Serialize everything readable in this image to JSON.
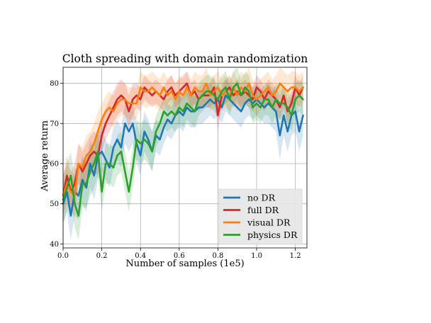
{
  "chart_data": {
    "type": "line",
    "title": "Cloth spreading with domain randomization",
    "xlabel": "Number of samples (1e5)",
    "ylabel": "Average return",
    "xlim": [
      0.0,
      1.26
    ],
    "ylim": [
      39,
      84
    ],
    "xticks": [
      0.0,
      0.2,
      0.4,
      0.6,
      0.8,
      1.0,
      1.2
    ],
    "xtick_labels": [
      "0.0",
      "0.2",
      "0.4",
      "0.6",
      "0.8",
      "1.0",
      "1.2"
    ],
    "yticks": [
      40,
      50,
      60,
      70,
      80
    ],
    "ytick_labels": [
      "40",
      "50",
      "60",
      "70",
      "80"
    ],
    "grid": true,
    "legend_position": "bottom-right",
    "x": [
      0.0,
      0.02,
      0.04,
      0.06,
      0.08,
      0.1,
      0.12,
      0.14,
      0.16,
      0.18,
      0.2,
      0.22,
      0.24,
      0.26,
      0.28,
      0.3,
      0.32,
      0.34,
      0.36,
      0.38,
      0.4,
      0.42,
      0.44,
      0.46,
      0.48,
      0.5,
      0.52,
      0.54,
      0.56,
      0.58,
      0.6,
      0.62,
      0.64,
      0.66,
      0.68,
      0.7,
      0.72,
      0.74,
      0.76,
      0.78,
      0.8,
      0.82,
      0.84,
      0.86,
      0.88,
      0.9,
      0.92,
      0.94,
      0.96,
      0.98,
      1.0,
      1.02,
      1.04,
      1.06,
      1.08,
      1.1,
      1.12,
      1.14,
      1.16,
      1.18,
      1.2,
      1.22,
      1.24
    ],
    "series": [
      {
        "name": "no DR",
        "color": "#1f77b4",
        "values": [
          50,
          53,
          47,
          53,
          52,
          56,
          54,
          60,
          57,
          62,
          63,
          61,
          59,
          64,
          66,
          64,
          70,
          68,
          70,
          65,
          62,
          68,
          66,
          63,
          67,
          66,
          69,
          71,
          70,
          72,
          73,
          72,
          74,
          73,
          73,
          74,
          74,
          75,
          76,
          75,
          76,
          74,
          77,
          76,
          75,
          74,
          73,
          75,
          76,
          75,
          76,
          75,
          74,
          75,
          74,
          73,
          67,
          72,
          68,
          72,
          73,
          68,
          72
        ],
        "band": [
          5,
          5,
          6,
          6,
          6,
          6,
          6,
          6,
          6,
          6,
          5,
          5,
          5,
          5,
          5,
          5,
          5,
          5,
          5,
          5,
          5,
          5,
          5,
          5,
          4,
          4,
          4,
          4,
          4,
          4,
          4,
          4,
          4,
          4,
          4,
          4,
          4,
          4,
          4,
          4,
          4,
          4,
          4,
          4,
          4,
          4,
          4,
          4,
          4,
          4,
          4,
          4,
          4,
          5,
          5,
          5,
          6,
          5,
          5,
          5,
          5,
          5,
          5
        ]
      },
      {
        "name": "full DR",
        "color": "#d62728",
        "values": [
          52,
          57,
          53,
          55,
          60,
          58,
          60,
          62,
          63,
          62,
          67,
          70,
          72,
          74,
          76,
          77,
          76,
          73,
          76,
          77,
          76,
          79,
          78,
          77,
          78,
          77,
          76,
          78,
          79,
          77,
          78,
          79,
          80,
          77,
          78,
          76,
          77,
          77,
          77,
          79,
          72,
          77,
          78,
          79,
          77,
          78,
          77,
          78,
          77,
          76,
          79,
          78,
          76,
          78,
          77,
          76,
          74,
          77,
          73,
          75,
          79,
          77,
          79
        ],
        "band": [
          5,
          5,
          5,
          5,
          5,
          5,
          5,
          5,
          5,
          5,
          4,
          4,
          4,
          4,
          4,
          4,
          4,
          4,
          4,
          3,
          3,
          3,
          3,
          3,
          3,
          3,
          3,
          3,
          3,
          3,
          3,
          3,
          3,
          3,
          3,
          3,
          3,
          3,
          3,
          3,
          4,
          3,
          3,
          3,
          3,
          3,
          3,
          3,
          3,
          3,
          3,
          3,
          3,
          3,
          3,
          3,
          3,
          3,
          3,
          3,
          3,
          3,
          3
        ]
      },
      {
        "name": "visual DR",
        "color": "#ff7f0e",
        "values": [
          52,
          55,
          53,
          52,
          60,
          59,
          62,
          63,
          65,
          68,
          71,
          73,
          74,
          73,
          75,
          76,
          76,
          75,
          75,
          75,
          79,
          78,
          78,
          79,
          78,
          77,
          79,
          77,
          78,
          76,
          78,
          77,
          79,
          77,
          79,
          78,
          78,
          80,
          77,
          78,
          79,
          77,
          78,
          77,
          79,
          77,
          79,
          78,
          80,
          77,
          76,
          77,
          78,
          79,
          77,
          78,
          80,
          79,
          78,
          79,
          79,
          78,
          79
        ],
        "band": [
          5,
          5,
          5,
          5,
          5,
          5,
          5,
          5,
          5,
          5,
          4,
          4,
          4,
          4,
          4,
          4,
          4,
          4,
          4,
          4,
          4,
          4,
          4,
          4,
          4,
          4,
          4,
          4,
          4,
          4,
          4,
          4,
          4,
          4,
          4,
          4,
          4,
          4,
          4,
          4,
          4,
          4,
          4,
          4,
          4,
          4,
          4,
          4,
          4,
          4,
          4,
          4,
          4,
          4,
          4,
          4,
          4,
          4,
          4,
          4,
          4,
          4,
          4
        ]
      },
      {
        "name": "physics DR",
        "color": "#2ca02c",
        "values": [
          51,
          54,
          57,
          50,
          47,
          55,
          55,
          58,
          60,
          63,
          53,
          60,
          60,
          59,
          62,
          63,
          58,
          53,
          59,
          66,
          65,
          66,
          65,
          63,
          68,
          70,
          73,
          72,
          73,
          72,
          74,
          73,
          75,
          74,
          73,
          76,
          77,
          78,
          78,
          77,
          76,
          78,
          79,
          76,
          79,
          80,
          77,
          79,
          78,
          74,
          75,
          74,
          76,
          76,
          74,
          76,
          75,
          75,
          74,
          72,
          76,
          77,
          76
        ],
        "band": [
          6,
          6,
          6,
          6,
          6,
          6,
          6,
          6,
          6,
          6,
          5,
          5,
          5,
          5,
          5,
          5,
          5,
          5,
          5,
          5,
          5,
          5,
          5,
          5,
          4,
          4,
          4,
          4,
          4,
          4,
          4,
          4,
          4,
          4,
          4,
          4,
          4,
          4,
          4,
          4,
          4,
          4,
          4,
          4,
          4,
          4,
          4,
          4,
          4,
          4,
          4,
          4,
          4,
          4,
          4,
          4,
          4,
          4,
          4,
          4,
          4,
          4,
          4
        ]
      }
    ]
  }
}
